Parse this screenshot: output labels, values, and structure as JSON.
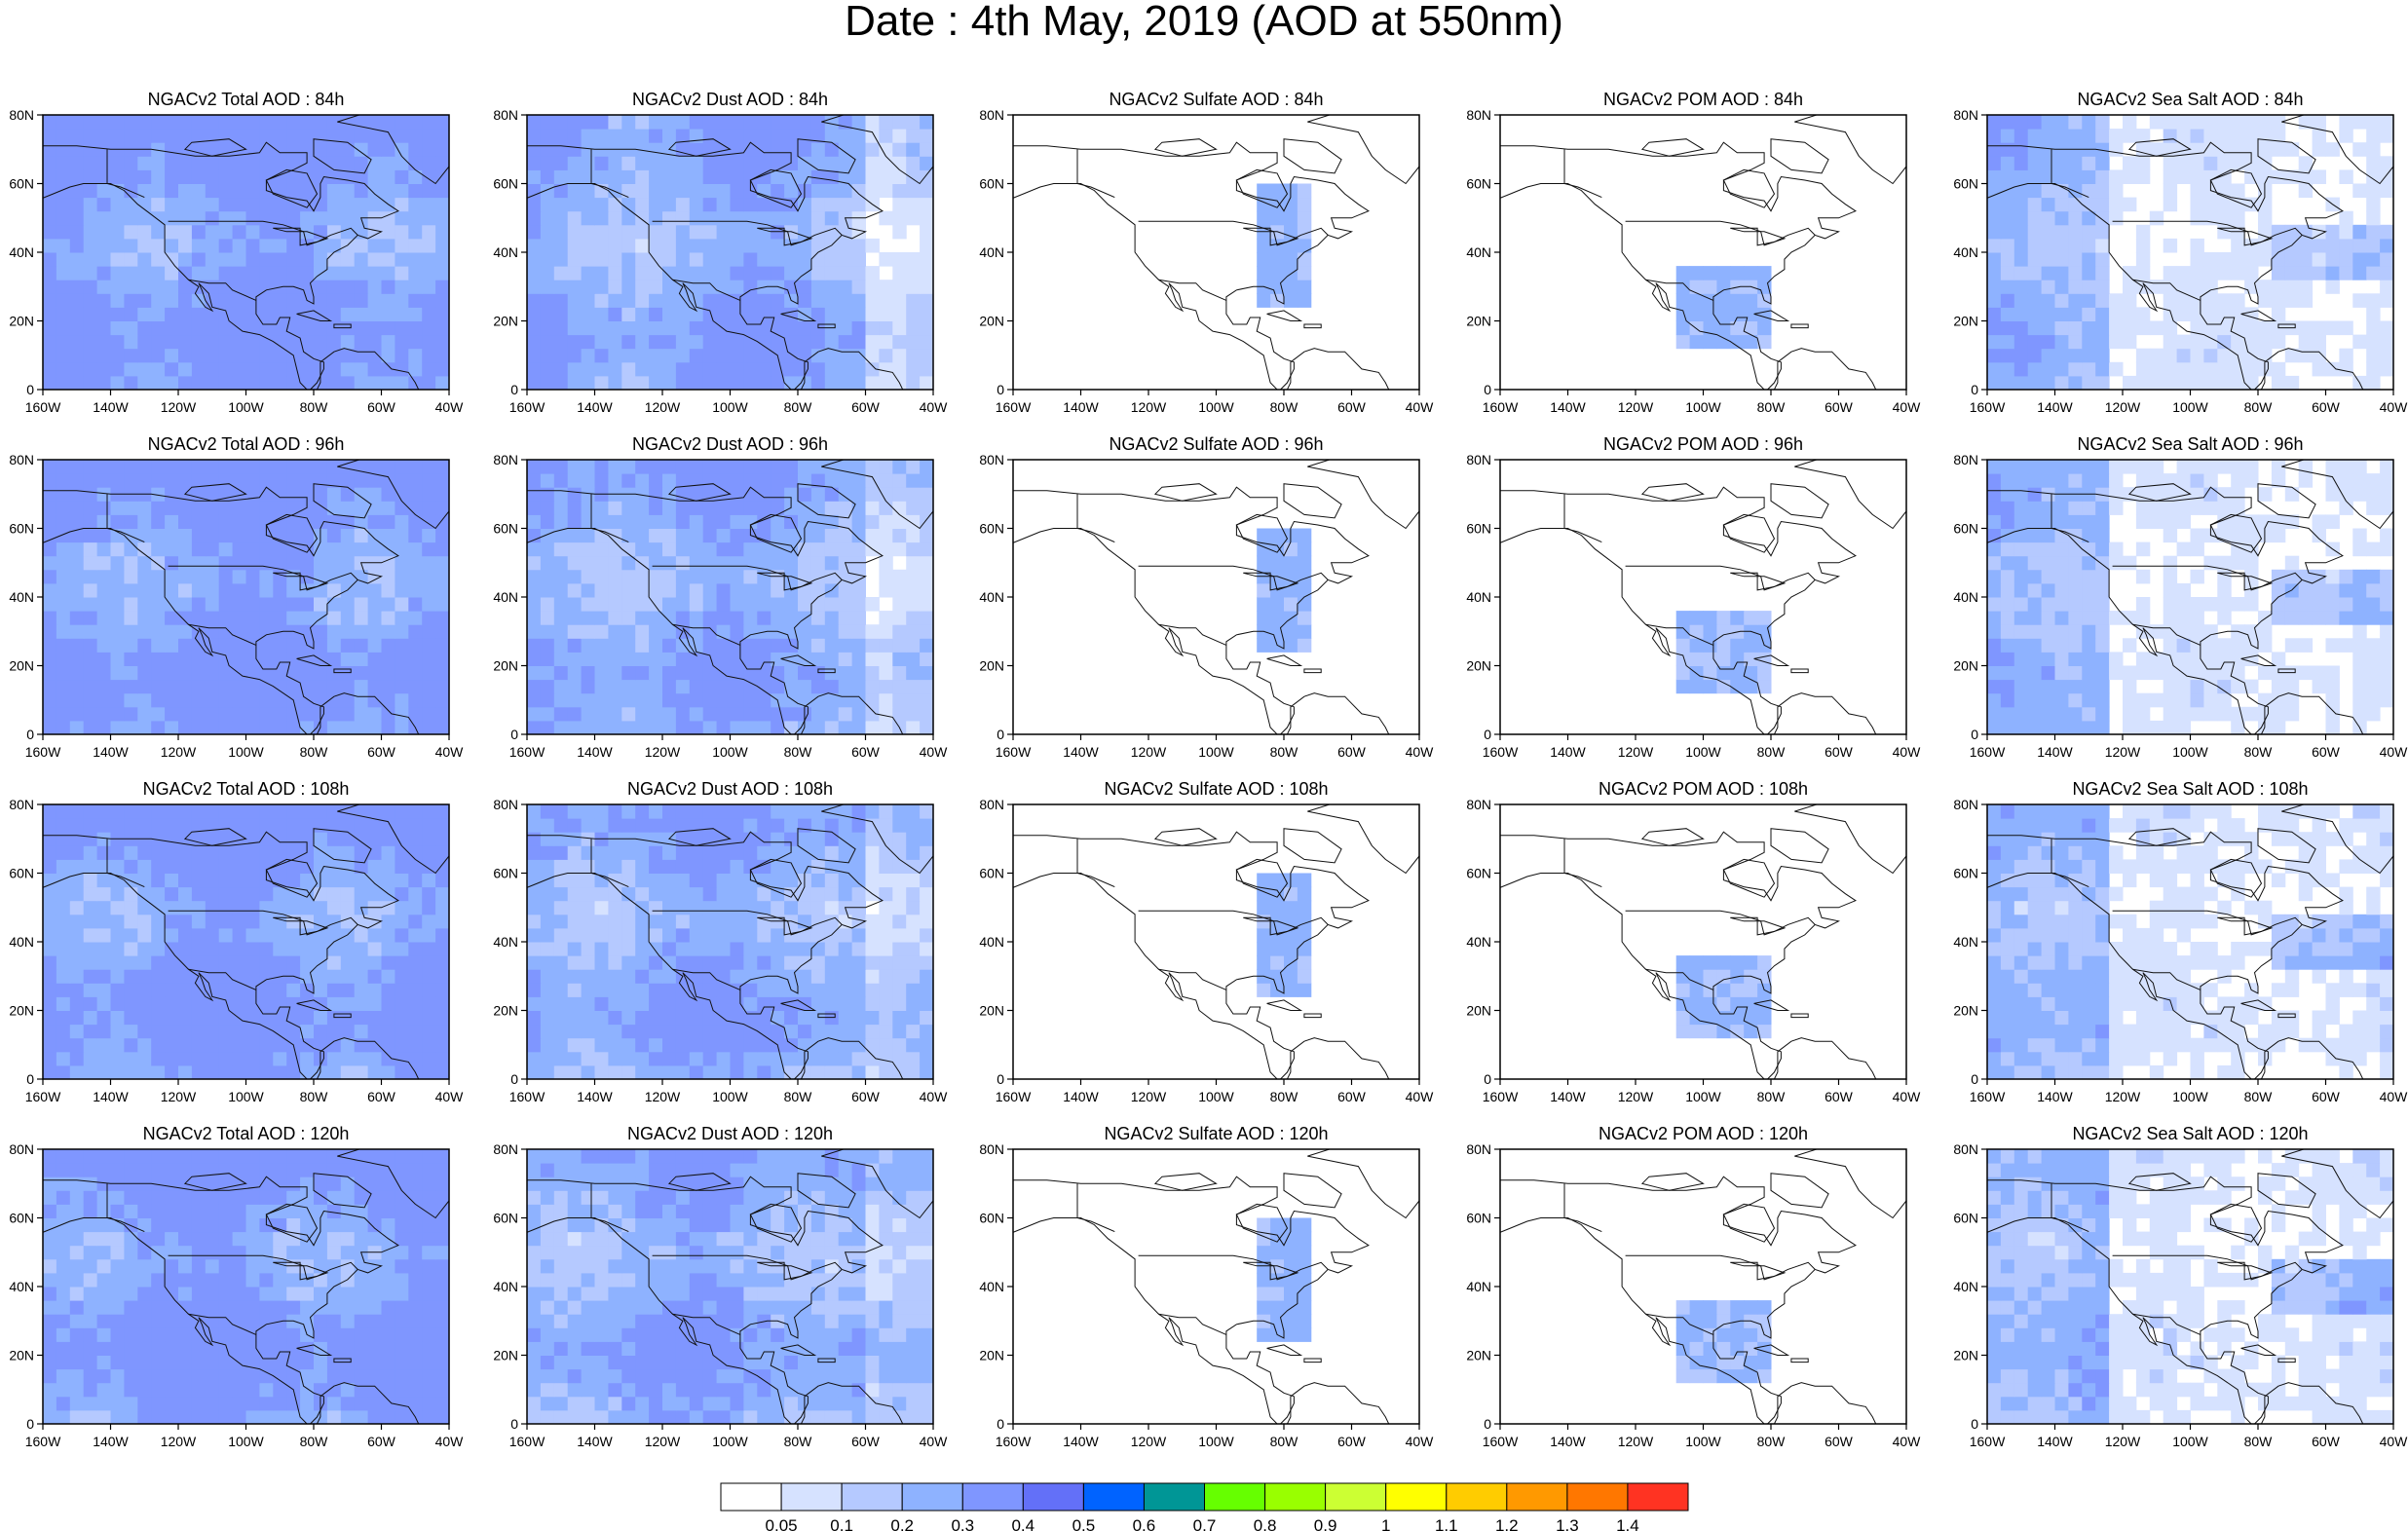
{
  "title": "Date : 4th May, 2019 (AOD at 550nm)",
  "variables": [
    {
      "key": "total",
      "label": "NGACv2 Total AOD"
    },
    {
      "key": "dust",
      "label": "NGACv2 Dust AOD"
    },
    {
      "key": "sulfate",
      "label": "NGACv2 Sulfate AOD"
    },
    {
      "key": "pom",
      "label": "NGACv2 POM AOD"
    },
    {
      "key": "seasalt",
      "label": "NGACv2 Sea Salt AOD"
    }
  ],
  "panels": [
    {
      "title": "NGACv2 Total AOD : 84h",
      "variable": "total",
      "forecast_hour": "84h"
    },
    {
      "title": "NGACv2 Dust AOD : 84h",
      "variable": "dust",
      "forecast_hour": "84h"
    },
    {
      "title": "NGACv2 Sulfate AOD : 84h",
      "variable": "sulfate",
      "forecast_hour": "84h"
    },
    {
      "title": "NGACv2 POM AOD : 84h",
      "variable": "pom",
      "forecast_hour": "84h"
    },
    {
      "title": "NGACv2 Sea Salt AOD : 84h",
      "variable": "seasalt",
      "forecast_hour": "84h"
    },
    {
      "title": "NGACv2 Total AOD : 96h",
      "variable": "total",
      "forecast_hour": "96h"
    },
    {
      "title": "NGACv2 Dust AOD : 96h",
      "variable": "dust",
      "forecast_hour": "96h"
    },
    {
      "title": "NGACv2 Sulfate AOD : 96h",
      "variable": "sulfate",
      "forecast_hour": "96h"
    },
    {
      "title": "NGACv2 POM AOD : 96h",
      "variable": "pom",
      "forecast_hour": "96h"
    },
    {
      "title": "NGACv2 Sea Salt AOD : 96h",
      "variable": "seasalt",
      "forecast_hour": "96h"
    },
    {
      "title": "NGACv2 Total AOD : 108h",
      "variable": "total",
      "forecast_hour": "108h"
    },
    {
      "title": "NGACv2 Dust AOD : 108h",
      "variable": "dust",
      "forecast_hour": "108h"
    },
    {
      "title": "NGACv2 Sulfate AOD : 108h",
      "variable": "sulfate",
      "forecast_hour": "108h"
    },
    {
      "title": "NGACv2 POM AOD : 108h",
      "variable": "pom",
      "forecast_hour": "108h"
    },
    {
      "title": "NGACv2 Sea Salt AOD : 108h",
      "variable": "seasalt",
      "forecast_hour": "108h"
    },
    {
      "title": "NGACv2 Total AOD : 120h",
      "variable": "total",
      "forecast_hour": "120h"
    },
    {
      "title": "NGACv2 Dust AOD : 120h",
      "variable": "dust",
      "forecast_hour": "120h"
    },
    {
      "title": "NGACv2 Sulfate AOD : 120h",
      "variable": "sulfate",
      "forecast_hour": "120h"
    },
    {
      "title": "NGACv2 POM AOD : 120h",
      "variable": "pom",
      "forecast_hour": "120h"
    },
    {
      "title": "NGACv2 Sea Salt  AOD : 120h",
      "variable": "seasalt",
      "forecast_hour": "120h"
    }
  ],
  "map_extent": {
    "lon_min": -160,
    "lon_max": -40,
    "lat_min": 0,
    "lat_max": 80
  },
  "x_ticks": [
    {
      "value": -160,
      "label": "160W"
    },
    {
      "value": -140,
      "label": "140W"
    },
    {
      "value": -120,
      "label": "120W"
    },
    {
      "value": -100,
      "label": "100W"
    },
    {
      "value": -80,
      "label": "80W"
    },
    {
      "value": -60,
      "label": "60W"
    },
    {
      "value": -40,
      "label": "40W"
    }
  ],
  "y_ticks": [
    {
      "value": 0,
      "label": "0"
    },
    {
      "value": 20,
      "label": "20N"
    },
    {
      "value": 40,
      "label": "40N"
    },
    {
      "value": 60,
      "label": "60N"
    },
    {
      "value": 80,
      "label": "80N"
    }
  ],
  "colorbar": {
    "labels": [
      "0.05",
      "0.1",
      "0.2",
      "0.3",
      "0.4",
      "0.5",
      "0.6",
      "0.7",
      "0.8",
      "0.9",
      "1",
      "1.1",
      "1.2",
      "1.3",
      "1.4"
    ],
    "colors": [
      "#ffffff",
      "#d6e2ff",
      "#b5c9ff",
      "#8eb2ff",
      "#7f96ff",
      "#6370f8",
      "#0063ff",
      "#009696",
      "#66ff00",
      "#99ff00",
      "#ccff33",
      "#ffff00",
      "#ffcc00",
      "#ff9900",
      "#ff7700",
      "#ff3322"
    ]
  },
  "styles": {
    "frame_color": "#000000",
    "coastline_color": "#111111",
    "level_colors": [
      "#ffffff",
      "#d6e2ff",
      "#b5c9ff",
      "#8eb2ff",
      "#7f96ff"
    ]
  }
}
